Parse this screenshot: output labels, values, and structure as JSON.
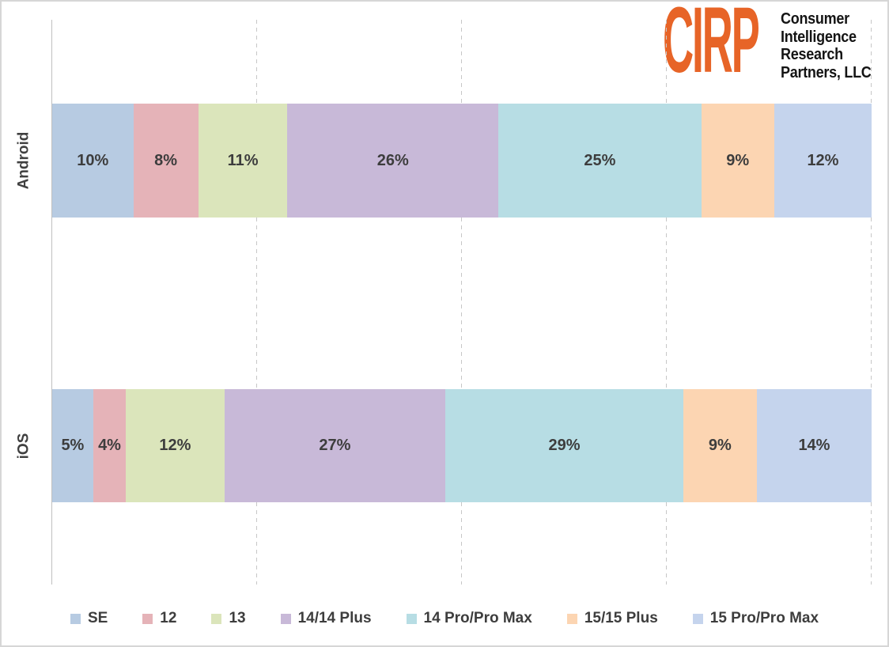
{
  "logo": {
    "acronym": "CIRP",
    "lines": [
      "Consumer",
      "Intelligence",
      "Research",
      "Partners, LLC"
    ],
    "accent_color": "#e76427"
  },
  "chart_data": {
    "type": "bar",
    "orientation": "horizontal-stacked",
    "categories": [
      "Android",
      "iOS"
    ],
    "series": [
      {
        "name": "SE",
        "color": "#b7cbe2",
        "values": [
          10,
          5
        ]
      },
      {
        "name": "12",
        "color": "#e5b3b8",
        "values": [
          8,
          4
        ]
      },
      {
        "name": "13",
        "color": "#dbe5bb",
        "values": [
          11,
          12
        ]
      },
      {
        "name": "14/14 Plus",
        "color": "#c8b9d8",
        "values": [
          26,
          27
        ]
      },
      {
        "name": "14 Pro/Pro Max",
        "color": "#b7dde4",
        "values": [
          25,
          29
        ]
      },
      {
        "name": "15/15 Plus",
        "color": "#fcd5b2",
        "values": [
          9,
          9
        ]
      },
      {
        "name": "15 Pro/Pro Max",
        "color": "#c5d4ed",
        "values": [
          12,
          14
        ]
      }
    ],
    "value_suffix": "%",
    "xlim": [
      0,
      100
    ],
    "gridlines_percent": [
      25,
      50,
      75,
      100
    ],
    "grid_style": "dashed",
    "legend_position": "bottom",
    "title": "",
    "xlabel": "",
    "ylabel": ""
  }
}
